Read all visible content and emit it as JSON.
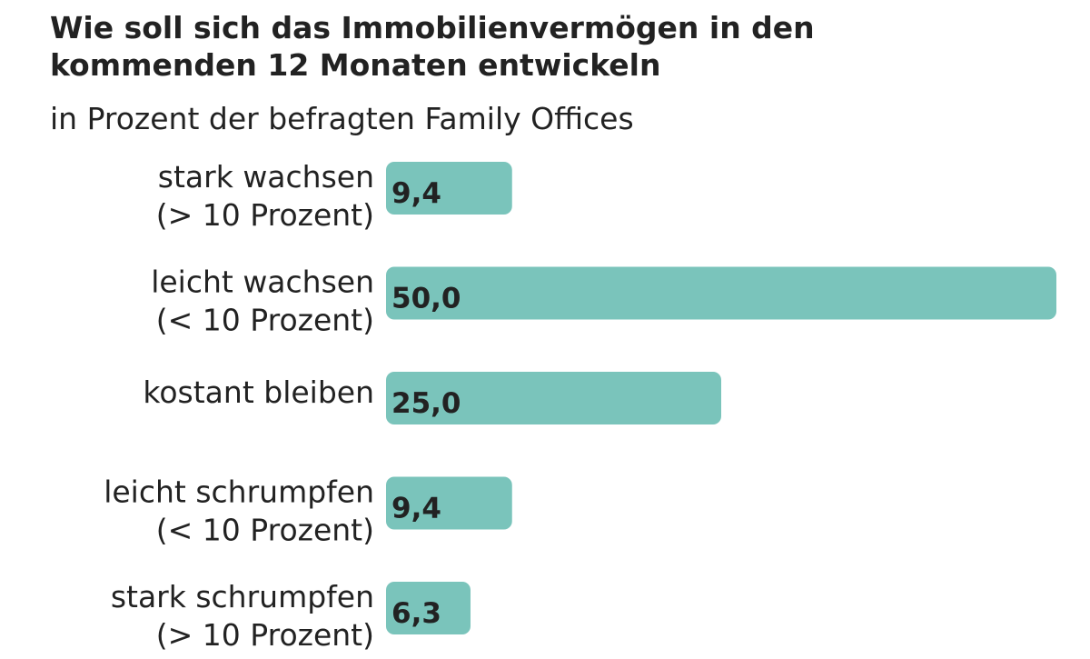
{
  "chart_data": {
    "type": "bar",
    "orientation": "horizontal",
    "title": [
      "Wie soll sich das Immobilienvermögen in den",
      "kommenden 12 Monaten entwickeln"
    ],
    "subtitle": "in Prozent der befragten Family Offices",
    "categories": [
      [
        "stark wachsen",
        "(> 10 Prozent)"
      ],
      [
        "leicht wachsen",
        "(< 10 Prozent)"
      ],
      [
        "kostant bleiben"
      ],
      [
        "leicht schrumpfen",
        "(< 10 Prozent)"
      ],
      [
        "stark schrumpfen",
        "(> 10 Prozent)"
      ]
    ],
    "values": [
      9.4,
      50.0,
      25.0,
      9.4,
      6.3
    ],
    "value_labels": [
      "9,4",
      "50,0",
      "25,0",
      "9,4",
      "6,3"
    ],
    "color": "#7ac4bb"
  }
}
